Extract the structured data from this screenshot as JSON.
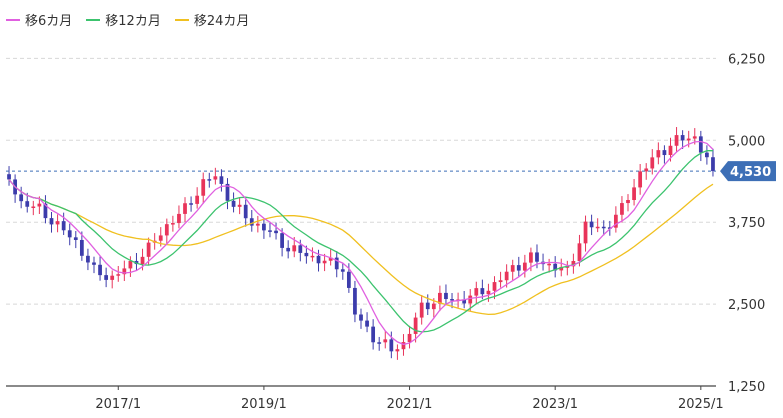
{
  "colors": {
    "ma6": "#e060e0",
    "ma12": "#3cc36e",
    "ma24": "#f0c020",
    "candle_up": "#e8345a",
    "candle_down": "#3c3cab",
    "current_price_tag": "#3d6fb6",
    "current_price_line": "#3d6fb6",
    "grid": "#d8d8d8",
    "axis_text": "#333333"
  },
  "legend": [
    {
      "key": "ma6",
      "label": "移6カ月"
    },
    {
      "key": "ma12",
      "label": "移12カ月"
    },
    {
      "key": "ma24",
      "label": "移24カ月"
    }
  ],
  "chart_data": {
    "type": "candlestick",
    "title": "",
    "xlabel": "",
    "ylabel": "",
    "x_start": "2015/7",
    "x_end": "2025/3",
    "x_ticks": [
      "2017/1",
      "2019/1",
      "2021/1",
      "2023/1",
      "2025/1"
    ],
    "y_ticks": [
      1250,
      2500,
      3750,
      5000,
      6250
    ],
    "y_tick_labels": [
      "1,250",
      "2,500",
      "3,750",
      "5,000",
      "6,250"
    ],
    "ylim": [
      1250,
      6500
    ],
    "grid": "horizontal dashed",
    "legend_position": "top-left",
    "current_price": 4530,
    "current_price_label": "4,530",
    "series_visible": [
      "candles",
      "ma6",
      "ma12",
      "ma24"
    ],
    "close_guide": [
      [
        "2015/7",
        4400
      ],
      [
        "2015/9",
        4050
      ],
      [
        "2015/12",
        3950
      ],
      [
        "2016/3",
        3700
      ],
      [
        "2016/6",
        3450
      ],
      [
        "2016/9",
        3000
      ],
      [
        "2016/12",
        2900
      ],
      [
        "2017/3",
        3100
      ],
      [
        "2017/6",
        3350
      ],
      [
        "2017/9",
        3700
      ],
      [
        "2017/12",
        3950
      ],
      [
        "2018/3",
        4350
      ],
      [
        "2018/5",
        4450
      ],
      [
        "2018/8",
        4000
      ],
      [
        "2018/11",
        3750
      ],
      [
        "2019/2",
        3600
      ],
      [
        "2019/5",
        3350
      ],
      [
        "2019/8",
        3250
      ],
      [
        "2019/11",
        3150
      ],
      [
        "2020/2",
        3050
      ],
      [
        "2020/4",
        2350
      ],
      [
        "2020/7",
        2000
      ],
      [
        "2020/10",
        1800
      ],
      [
        "2020/12",
        1900
      ],
      [
        "2021/3",
        2450
      ],
      [
        "2021/6",
        2600
      ],
      [
        "2021/9",
        2550
      ],
      [
        "2021/12",
        2650
      ],
      [
        "2022/3",
        2800
      ],
      [
        "2022/6",
        3050
      ],
      [
        "2022/9",
        3200
      ],
      [
        "2022/12",
        3100
      ],
      [
        "2023/3",
        3000
      ],
      [
        "2023/6",
        3700
      ],
      [
        "2023/9",
        3650
      ],
      [
        "2023/12",
        3950
      ],
      [
        "2024/3",
        4500
      ],
      [
        "2024/6",
        4800
      ],
      [
        "2024/9",
        5000
      ],
      [
        "2024/12",
        5050
      ],
      [
        "2025/3",
        4530
      ]
    ]
  }
}
